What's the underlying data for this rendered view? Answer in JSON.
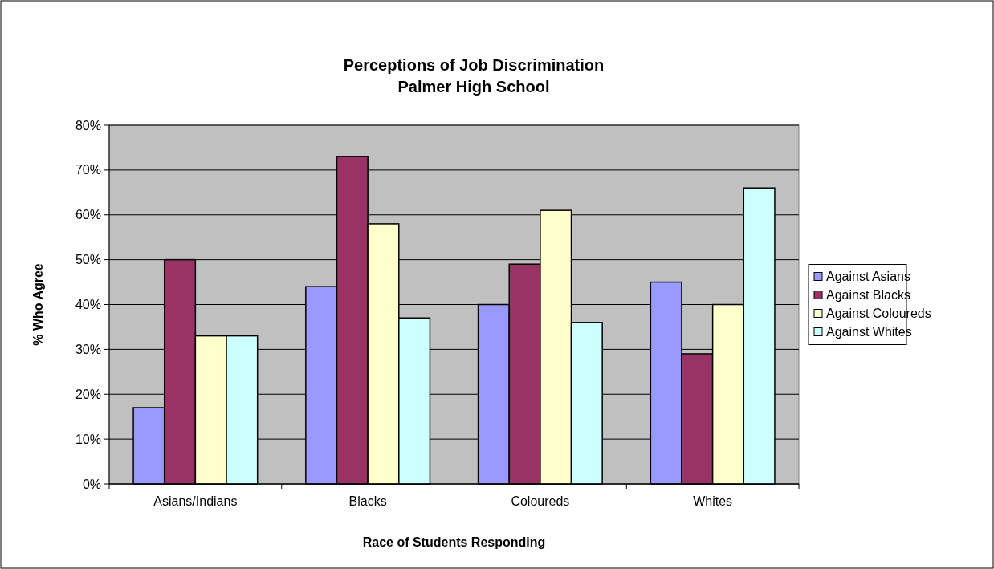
{
  "chart_data": {
    "type": "bar",
    "title": "Perceptions of Job Discrimination\nPalmer High School",
    "xlabel": "Race of Students Responding",
    "ylabel": "% Who Agree",
    "categories": [
      "Asians/Indians",
      "Blacks",
      "Coloureds",
      "Whites"
    ],
    "series": [
      {
        "name": "Against Asians",
        "color": "#9999ff",
        "values": [
          17,
          44,
          40,
          45
        ]
      },
      {
        "name": "Against Blacks",
        "color": "#993366",
        "values": [
          50,
          73,
          49,
          29
        ]
      },
      {
        "name": "Against Coloureds",
        "color": "#ffffcc",
        "values": [
          33,
          58,
          61,
          40
        ]
      },
      {
        "name": "Against Whites",
        "color": "#ccffff",
        "values": [
          33,
          37,
          36,
          66
        ]
      }
    ],
    "ylim": [
      0,
      80
    ],
    "yticks": [
      {
        "value": 0,
        "label": "0%"
      },
      {
        "value": 10,
        "label": "10%"
      },
      {
        "value": 20,
        "label": "20%"
      },
      {
        "value": 30,
        "label": "30%"
      },
      {
        "value": 40,
        "label": "40%"
      },
      {
        "value": 50,
        "label": "50%"
      },
      {
        "value": 60,
        "label": "60%"
      },
      {
        "value": 70,
        "label": "70%"
      },
      {
        "value": 80,
        "label": "80%"
      }
    ],
    "grid": "y",
    "legend": "right"
  }
}
